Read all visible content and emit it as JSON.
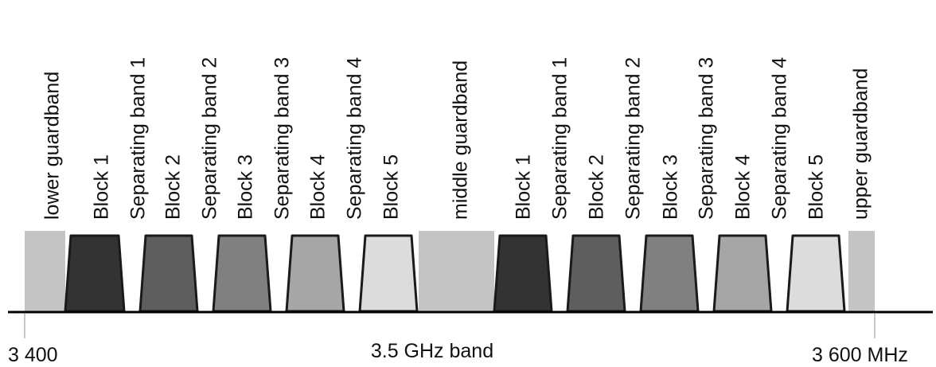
{
  "segments": [
    {
      "label": "lower guardband",
      "kind": "guard",
      "fill": "#c4c4c4"
    },
    {
      "label": "Block 1",
      "kind": "block",
      "fill": "#333333"
    },
    {
      "label": "Separating band 1",
      "kind": "sep"
    },
    {
      "label": "Block 2",
      "kind": "block",
      "fill": "#5e5e5e"
    },
    {
      "label": "Separating band 2",
      "kind": "sep"
    },
    {
      "label": "Block 3",
      "kind": "block",
      "fill": "#808080"
    },
    {
      "label": "Separating band 3",
      "kind": "sep"
    },
    {
      "label": "Block 4",
      "kind": "block",
      "fill": "#a6a6a6"
    },
    {
      "label": "Separating band 4",
      "kind": "sep"
    },
    {
      "label": "Block 5",
      "kind": "block",
      "fill": "#dcdcdc"
    },
    {
      "label": "middle guardband",
      "kind": "guard",
      "fill": "#c4c4c4"
    },
    {
      "label": "Block 1",
      "kind": "block",
      "fill": "#333333"
    },
    {
      "label": "Separating band 1",
      "kind": "sep"
    },
    {
      "label": "Block 2",
      "kind": "block",
      "fill": "#5e5e5e"
    },
    {
      "label": "Separating band 2",
      "kind": "sep"
    },
    {
      "label": "Block 3",
      "kind": "block",
      "fill": "#808080"
    },
    {
      "label": "Separating band 3",
      "kind": "sep"
    },
    {
      "label": "Block 4",
      "kind": "block",
      "fill": "#a6a6a6"
    },
    {
      "label": "Separating band 4",
      "kind": "sep"
    },
    {
      "label": "Block 5",
      "kind": "block",
      "fill": "#dcdcdc"
    },
    {
      "label": "upper guardband",
      "kind": "guard",
      "fill": "#c4c4c4"
    }
  ],
  "axis": {
    "start_label": "3 400",
    "center_label": "3.5 GHz band",
    "end_label": "3 600 MHz"
  },
  "colors": {
    "outline": "#1a1a1a",
    "baseline": "#000000",
    "tick": "#c8c8c8",
    "text": "#111111"
  }
}
